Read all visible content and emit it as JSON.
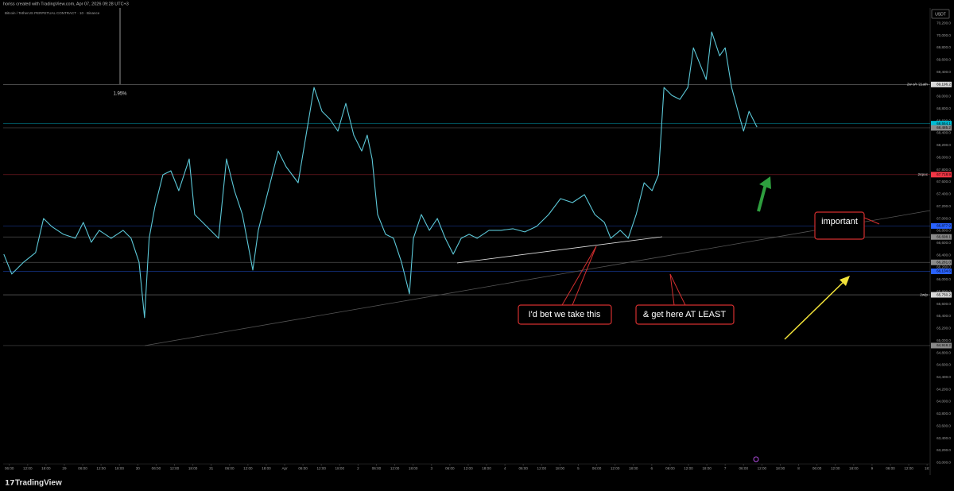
{
  "chart_data": {
    "type": "line",
    "header": "horiss created with TradingView.com, Apr 07, 2026 09:28 UTC+3",
    "title": "Bitcoin / TetherUS PERPETUAL CONTRACT · 10 · Binance",
    "currency": "USDT",
    "brand": "TradingView",
    "measure_label": "1.95%",
    "annotations": [
      "I'd bet we take this",
      "& get here AT LEAST",
      "important"
    ],
    "xlim": [
      4,
      307
    ],
    "ylim": [
      62900,
      70450
    ],
    "grid": false,
    "x": [
      4.2,
      6.8,
      10.7,
      14.6,
      17.2,
      19.8,
      23.7,
      27.6,
      30.2,
      32.8,
      35.4,
      39.3,
      43.2,
      45.8,
      48.4,
      50.2,
      51.7,
      53.6,
      56.2,
      58.8,
      61.4,
      64.8,
      66.6,
      69.2,
      71.8,
      74.4,
      77.0,
      79.6,
      82.2,
      85.6,
      87.4,
      90.0,
      93.9,
      96.5,
      100.4,
      103.0,
      105.6,
      108.2,
      110.8,
      113.4,
      116.0,
      118.6,
      121.2,
      123.0,
      124.6,
      126.4,
      129.0,
      131.6,
      134.2,
      136.8,
      138.1,
      140.7,
      143.3,
      145.9,
      148.5,
      151.1,
      153.7,
      156.3,
      158.9,
      162.8,
      166.7,
      170.6,
      174.5,
      178.4,
      182.3,
      186.2,
      190.1,
      194.0,
      197.4,
      200.5,
      202.6,
      205.7,
      208.3,
      210.9,
      213.5,
      216.1,
      218.2,
      220.0,
      222.6,
      225.2,
      227.8,
      229.6,
      231.7,
      233.8,
      235.6,
      238.2,
      240.0,
      242.1,
      244.2,
      246.0,
      247.8,
      250.4
    ],
    "series": [
      {
        "name": "BTCUSDT.P",
        "color": "#5cc8d8",
        "values": [
          66416,
          66091,
          66286,
          66442,
          67001,
          66871,
          66741,
          66676,
          66936,
          66611,
          66806,
          66676,
          66806,
          66676,
          66286,
          65376,
          66676,
          67196,
          67716,
          67781,
          67456,
          67976,
          67066,
          66936,
          66806,
          66676,
          67976,
          67456,
          67066,
          66156,
          66806,
          67326,
          68106,
          67846,
          67586,
          68366,
          69147,
          68757,
          68627,
          68432,
          68887,
          68366,
          68106,
          68366,
          67976,
          67066,
          66741,
          66676,
          66286,
          65766,
          66676,
          67066,
          66806,
          67001,
          66676,
          66416,
          66676,
          66741,
          66676,
          66806,
          66806,
          66832,
          66780,
          66871,
          67066,
          67326,
          67261,
          67391,
          67066,
          66936,
          66676,
          66806,
          66676,
          67066,
          67586,
          67456,
          67716,
          69147,
          69017,
          68952,
          69147,
          69797,
          69537,
          69277,
          70057,
          69667,
          69797,
          69147,
          68757,
          68432,
          68757,
          68497
        ]
      }
    ],
    "levels": [
      {
        "value": 69196.2,
        "label": "69,196.2",
        "tag": "2w o/r '21ath",
        "color": "#d9d9d9"
      },
      {
        "value": 68554.1,
        "label": "68,554.1",
        "color": "#00bcd4"
      },
      {
        "value": 68485.2,
        "label": "68,485.2",
        "color": "#8a8a8a"
      },
      {
        "value": 67718.9,
        "label": "67,718.9",
        "tag": "24poc",
        "color": "#f23645"
      },
      {
        "value": 66877.9,
        "label": "66,877.9",
        "color": "#2962ff"
      },
      {
        "value": 66698.1,
        "label": "66,698.1",
        "color": "#8a8a8a"
      },
      {
        "value": 66281.0,
        "label": "66,281.0",
        "color": "#8a8a8a"
      },
      {
        "value": 66134.6,
        "label": "66,134.6",
        "color": "#2962ff"
      },
      {
        "value": 65750.2,
        "label": "65,750.2",
        "tag": "2w/p",
        "color": "#d9d9d9"
      },
      {
        "value": 64918.2,
        "label": "64,918.2",
        "color": "#8a8a8a"
      }
    ],
    "yticks": [
      {
        "value": 63000,
        "label": "63,000.0"
      },
      {
        "value": 63200,
        "label": "63,200.0"
      },
      {
        "value": 63400,
        "label": "63,400.0"
      },
      {
        "value": 63600,
        "label": "63,600.0"
      },
      {
        "value": 63800,
        "label": "63,800.0"
      },
      {
        "value": 64000,
        "label": "64,000.0"
      },
      {
        "value": 64200,
        "label": "64,200.0"
      },
      {
        "value": 64400,
        "label": "64,400.0"
      },
      {
        "value": 64600,
        "label": "64,600.0"
      },
      {
        "value": 64800,
        "label": "64,800.0"
      },
      {
        "value": 65000,
        "label": "65,000.0"
      },
      {
        "value": 65200,
        "label": "65,200.0"
      },
      {
        "value": 65400,
        "label": "65,400.0"
      },
      {
        "value": 65600,
        "label": "65,600.0"
      },
      {
        "value": 65800,
        "label": "65,800.0"
      },
      {
        "value": 66000,
        "label": "66,000.0"
      },
      {
        "value": 66200,
        "label": "66,200.0"
      },
      {
        "value": 66400,
        "label": "66,400.0"
      },
      {
        "value": 66600,
        "label": "66,600.0"
      },
      {
        "value": 66800,
        "label": "66,800.0"
      },
      {
        "value": 67000,
        "label": "67,000.0"
      },
      {
        "value": 67200,
        "label": "67,200.0"
      },
      {
        "value": 67400,
        "label": "67,400.0"
      },
      {
        "value": 67600,
        "label": "67,600.0"
      },
      {
        "value": 67800,
        "label": "67,800.0"
      },
      {
        "value": 68000,
        "label": "68,000.0"
      },
      {
        "value": 68200,
        "label": "68,200.0"
      },
      {
        "value": 68400,
        "label": "68,400.0"
      },
      {
        "value": 68600,
        "label": "68,600.0"
      },
      {
        "value": 68800,
        "label": "68,800.0"
      },
      {
        "value": 69000,
        "label": "69,000.0"
      },
      {
        "value": 69200,
        "label": "69,200.0"
      },
      {
        "value": 69400,
        "label": "69,400.0"
      },
      {
        "value": 69600,
        "label": "69,600.0"
      },
      {
        "value": 69800,
        "label": "69,800.0"
      },
      {
        "value": 70000,
        "label": "70,000.0"
      },
      {
        "value": 70200,
        "label": "70,200.0"
      }
    ],
    "xticks": [
      {
        "value": 6,
        "label": "06:00"
      },
      {
        "value": 12,
        "label": "12:00"
      },
      {
        "value": 18,
        "label": "18:00"
      },
      {
        "value": 24,
        "label": "29"
      },
      {
        "value": 30,
        "label": "06:00"
      },
      {
        "value": 36,
        "label": "12:00"
      },
      {
        "value": 42,
        "label": "18:00"
      },
      {
        "value": 48,
        "label": "30"
      },
      {
        "value": 54,
        "label": "06:00"
      },
      {
        "value": 60,
        "label": "12:00"
      },
      {
        "value": 66,
        "label": "18:00"
      },
      {
        "value": 72,
        "label": "31"
      },
      {
        "value": 78,
        "label": "06:00"
      },
      {
        "value": 84,
        "label": "12:00"
      },
      {
        "value": 90,
        "label": "18:00"
      },
      {
        "value": 96,
        "label": "Apr"
      },
      {
        "value": 102,
        "label": "06:00"
      },
      {
        "value": 108,
        "label": "12:00"
      },
      {
        "value": 114,
        "label": "18:00"
      },
      {
        "value": 120,
        "label": "2"
      },
      {
        "value": 126,
        "label": "06:00"
      },
      {
        "value": 132,
        "label": "12:00"
      },
      {
        "value": 138,
        "label": "18:00"
      },
      {
        "value": 144,
        "label": "3"
      },
      {
        "value": 150,
        "label": "06:00"
      },
      {
        "value": 156,
        "label": "12:00"
      },
      {
        "value": 162,
        "label": "18:00"
      },
      {
        "value": 168,
        "label": "4"
      },
      {
        "value": 174,
        "label": "06:00"
      },
      {
        "value": 180,
        "label": "12:00"
      },
      {
        "value": 186,
        "label": "18:00"
      },
      {
        "value": 192,
        "label": "5"
      },
      {
        "value": 198,
        "label": "06:00"
      },
      {
        "value": 204,
        "label": "12:00"
      },
      {
        "value": 210,
        "label": "18:00"
      },
      {
        "value": 216,
        "label": "6"
      },
      {
        "value": 222,
        "label": "06:00"
      },
      {
        "value": 228,
        "label": "12:00"
      },
      {
        "value": 234,
        "label": "18:00"
      },
      {
        "value": 240,
        "label": "7"
      },
      {
        "value": 246,
        "label": "06:00"
      },
      {
        "value": 252,
        "label": "12:00"
      },
      {
        "value": 258,
        "label": "18:00"
      },
      {
        "value": 264,
        "label": "8"
      },
      {
        "value": 270,
        "label": "06:00"
      },
      {
        "value": 276,
        "label": "12:00"
      },
      {
        "value": 282,
        "label": "18:00"
      },
      {
        "value": 288,
        "label": "9"
      },
      {
        "value": 294,
        "label": "06:00"
      },
      {
        "value": 300,
        "label": "12:00"
      },
      {
        "value": 306,
        "label": "18:"
      }
    ]
  }
}
